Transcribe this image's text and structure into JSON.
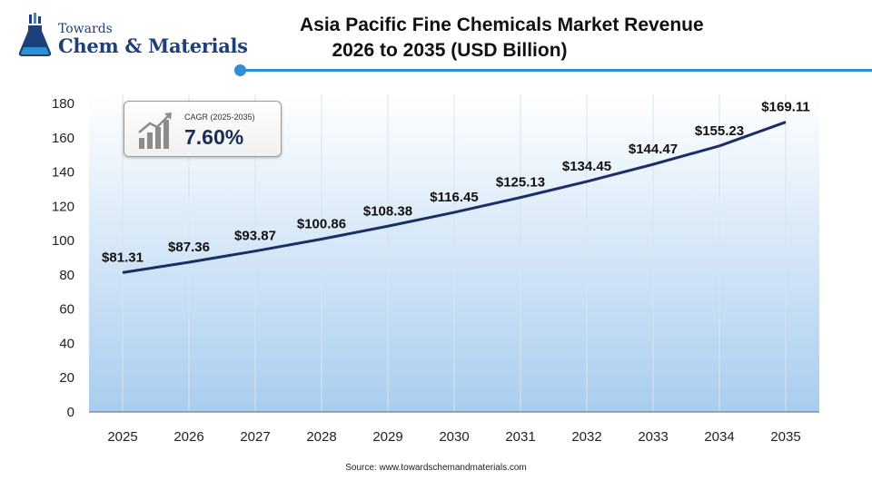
{
  "logo": {
    "line1": "Towards",
    "line2": "Chem & Materials"
  },
  "title": {
    "line1": "Asia Pacific Fine Chemicals Market Revenue",
    "line2": "2026 to 2035 (USD Billion)"
  },
  "cagr": {
    "label": "CAGR (2025-2035)",
    "value": "7.60%"
  },
  "source": "Source: www.towardschemandmaterials.com",
  "colors": {
    "line": "#1b2f66",
    "accent": "#2d8fd5",
    "area_top": "#ffffff",
    "area_bottom": "#a9cdef"
  },
  "chart_data": {
    "type": "line",
    "title": "Asia Pacific Fine Chemicals Market Revenue 2026 to 2035 (USD Billion)",
    "categories": [
      "2025",
      "2026",
      "2027",
      "2028",
      "2029",
      "2030",
      "2031",
      "2032",
      "2033",
      "2034",
      "2035"
    ],
    "values": [
      81.31,
      87.36,
      93.87,
      100.86,
      108.38,
      116.45,
      125.13,
      134.45,
      144.47,
      155.23,
      169.11
    ],
    "data_labels": [
      "$81.31",
      "$87.36",
      "$93.87",
      "$100.86",
      "$108.38",
      "$116.45",
      "$125.13",
      "$134.45",
      "$144.47",
      "$155.23",
      "$169.11"
    ],
    "y_ticks": [
      0,
      20,
      40,
      60,
      80,
      100,
      120,
      140,
      160,
      180
    ],
    "ylim": [
      0,
      180
    ],
    "xlabel": "",
    "ylabel": "",
    "grid": "vertical",
    "legend": "none"
  }
}
